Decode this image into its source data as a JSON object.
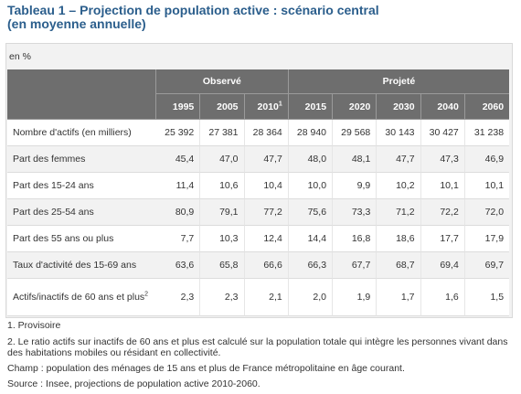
{
  "title": {
    "line1": "Tableau 1 – Projection de population active : scénario central",
    "line2": "(en moyenne annuelle)"
  },
  "unit": "en %",
  "header": {
    "group_observed": "Observé",
    "group_projected": "Projeté",
    "years": [
      "1995",
      "2005",
      "2010",
      "2015",
      "2020",
      "2030",
      "2040",
      "2060"
    ],
    "year_2010_note": "1"
  },
  "rows": [
    {
      "label": "Nombre d'actifs (en milliers)",
      "values": [
        "25 392",
        "27 381",
        "28 364",
        "28 940",
        "29 568",
        "30 143",
        "30 427",
        "31 238"
      ]
    },
    {
      "label": "Part des femmes",
      "values": [
        "45,4",
        "47,0",
        "47,7",
        "48,0",
        "48,1",
        "47,7",
        "47,3",
        "46,9"
      ]
    },
    {
      "label": "Part des 15-24 ans",
      "values": [
        "11,4",
        "10,6",
        "10,4",
        "10,0",
        "9,9",
        "10,2",
        "10,1",
        "10,1"
      ]
    },
    {
      "label": "Part des 25-54 ans",
      "values": [
        "80,9",
        "79,1",
        "77,2",
        "75,6",
        "73,3",
        "71,2",
        "72,2",
        "72,0"
      ]
    },
    {
      "label": "Part des 55 ans ou plus",
      "values": [
        "7,7",
        "10,3",
        "12,4",
        "14,4",
        "16,8",
        "18,6",
        "17,7",
        "17,9"
      ]
    },
    {
      "label": "Taux d'activité des 15-69 ans",
      "values": [
        "63,6",
        "65,8",
        "66,6",
        "66,3",
        "67,7",
        "68,7",
        "69,4",
        "69,7"
      ]
    },
    {
      "label": "Actifs/inactifs de 60 ans et plus",
      "label_note": "2",
      "values": [
        "2,3",
        "2,3",
        "2,1",
        "2,0",
        "1,9",
        "1,7",
        "1,6",
        "1,5"
      ]
    }
  ],
  "notes": {
    "n1": "1. Provisoire",
    "n2": "2. Le ratio actifs sur inactifs de 60 ans et plus est calculé sur la population totale qui intègre les personnes vivant dans des habitations mobiles ou résidant en collectivité.",
    "champ": "Champ : population des ménages de 15 ans et plus de France métropolitaine en âge courant.",
    "source": "Source : Insee, projections de population active 2010-2060."
  }
}
